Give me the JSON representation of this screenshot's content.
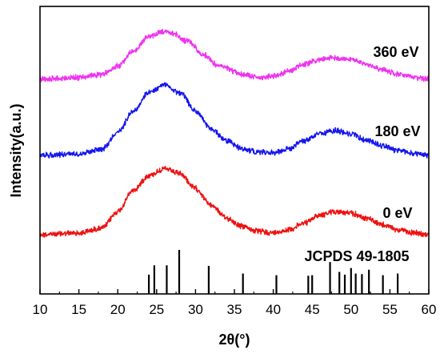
{
  "chart_data": {
    "type": "line",
    "xlabel": "2θ(°)",
    "ylabel": "Intensity(a.u.)",
    "xlim": [
      10,
      60
    ],
    "x_ticks": [
      "10",
      "15",
      "20",
      "25",
      "30",
      "35",
      "40",
      "45",
      "50",
      "55",
      "60"
    ],
    "y_ticks_shown": false,
    "grid": false,
    "legend": "none (series labeled inline at right)",
    "series": [
      {
        "name": "0 eV",
        "color": "#ee1111",
        "baseline": 0,
        "points": [
          [
            10,
            1.0
          ],
          [
            15,
            1.5
          ],
          [
            18,
            3.0
          ],
          [
            20,
            8.0
          ],
          [
            22,
            14.5
          ],
          [
            24,
            19.0
          ],
          [
            26,
            21.0
          ],
          [
            28,
            19.5
          ],
          [
            30,
            15.0
          ],
          [
            32,
            10.0
          ],
          [
            34,
            6.0
          ],
          [
            36,
            3.5
          ],
          [
            38,
            2.0
          ],
          [
            40,
            1.5
          ],
          [
            42,
            2.5
          ],
          [
            44,
            4.5
          ],
          [
            46,
            7.0
          ],
          [
            48,
            8.0
          ],
          [
            50,
            7.5
          ],
          [
            52,
            6.0
          ],
          [
            54,
            4.0
          ],
          [
            56,
            2.5
          ],
          [
            58,
            1.5
          ],
          [
            60,
            1.0
          ]
        ]
      },
      {
        "name": "180 eV",
        "color": "#1515ee",
        "baseline": 0,
        "points": [
          [
            10,
            1.0
          ],
          [
            15,
            1.5
          ],
          [
            18,
            3.0
          ],
          [
            20,
            8.0
          ],
          [
            22,
            14.5
          ],
          [
            24,
            20.0
          ],
          [
            26,
            22.5
          ],
          [
            28,
            20.0
          ],
          [
            30,
            14.5
          ],
          [
            32,
            9.0
          ],
          [
            34,
            5.5
          ],
          [
            36,
            3.0
          ],
          [
            38,
            2.0
          ],
          [
            40,
            1.8
          ],
          [
            42,
            3.0
          ],
          [
            44,
            5.5
          ],
          [
            46,
            7.5
          ],
          [
            48,
            8.5
          ],
          [
            50,
            7.5
          ],
          [
            52,
            5.5
          ],
          [
            54,
            4.0
          ],
          [
            56,
            2.5
          ],
          [
            58,
            1.5
          ],
          [
            60,
            1.0
          ]
        ]
      },
      {
        "name": "360 eV",
        "color": "#ee33ee",
        "baseline": 0,
        "points": [
          [
            10,
            1.0
          ],
          [
            15,
            1.5
          ],
          [
            18,
            2.5
          ],
          [
            20,
            5.0
          ],
          [
            22,
            9.5
          ],
          [
            24,
            14.0
          ],
          [
            26,
            15.5
          ],
          [
            27,
            15.0
          ],
          [
            29,
            12.5
          ],
          [
            31,
            8.5
          ],
          [
            33,
            5.0
          ],
          [
            36,
            2.5
          ],
          [
            38,
            1.5
          ],
          [
            40,
            2.0
          ],
          [
            42,
            3.5
          ],
          [
            44,
            5.5
          ],
          [
            46,
            7.0
          ],
          [
            48,
            7.5
          ],
          [
            50,
            7.0
          ],
          [
            52,
            5.5
          ],
          [
            54,
            4.0
          ],
          [
            56,
            2.5
          ],
          [
            58,
            1.5
          ],
          [
            60,
            1.0
          ]
        ]
      }
    ],
    "reference": {
      "name": "JCPDS 49-1805",
      "color": "#000000",
      "lines": [
        [
          24.0,
          35
        ],
        [
          24.7,
          52
        ],
        [
          26.3,
          52
        ],
        [
          27.9,
          80
        ],
        [
          31.7,
          51
        ],
        [
          36.1,
          37
        ],
        [
          40.4,
          34
        ],
        [
          44.5,
          33
        ],
        [
          45.0,
          34
        ],
        [
          47.3,
          58
        ],
        [
          48.5,
          40
        ],
        [
          49.2,
          35
        ],
        [
          50.0,
          47
        ],
        [
          50.6,
          37
        ],
        [
          51.4,
          36
        ],
        [
          52.3,
          44
        ],
        [
          54.1,
          34
        ],
        [
          56.0,
          37
        ]
      ]
    }
  }
}
